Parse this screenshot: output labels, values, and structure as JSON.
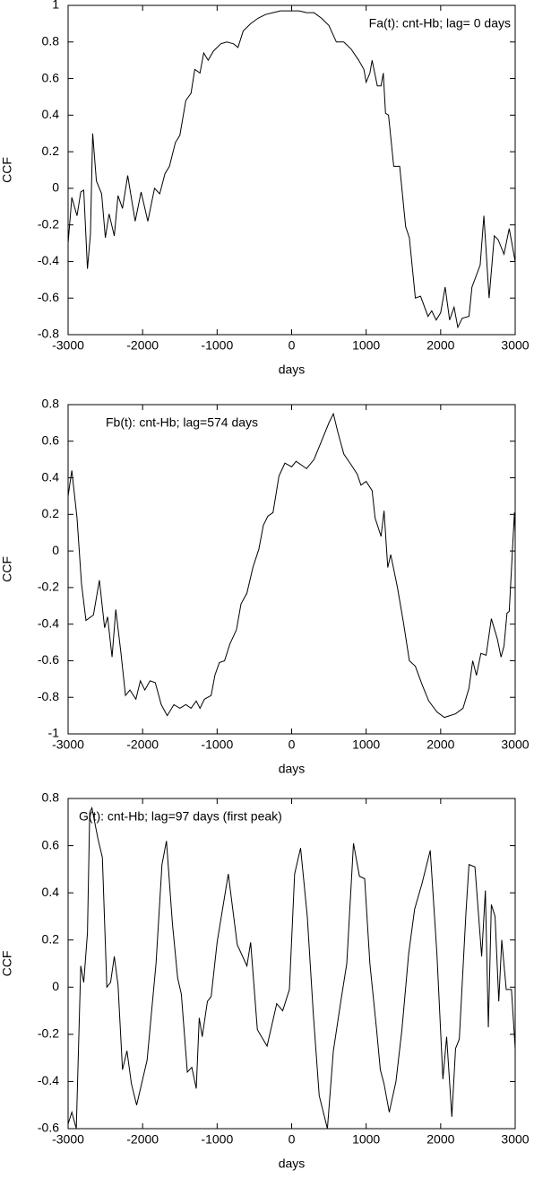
{
  "chart_data": [
    {
      "type": "line",
      "annotation": "Fa(t): cnt-Hb; lag= 0 days",
      "xlabel": "days",
      "ylabel": "CCF",
      "color": "#000000",
      "xlim": [
        -3000,
        3000
      ],
      "xticks": [
        -3000,
        -2000,
        -1000,
        0,
        1000,
        2000,
        3000
      ],
      "ylim": [
        -0.8,
        1
      ],
      "yticks": [
        -0.8,
        -0.6,
        -0.4,
        -0.2,
        0,
        0.2,
        0.4,
        0.6,
        0.8,
        1
      ],
      "x": [
        -3000,
        -2950,
        -2880,
        -2830,
        -2790,
        -2740,
        -2700,
        -2670,
        -2620,
        -2550,
        -2500,
        -2450,
        -2380,
        -2330,
        -2270,
        -2200,
        -2100,
        -2020,
        -1930,
        -1840,
        -1770,
        -1700,
        -1640,
        -1560,
        -1500,
        -1420,
        -1350,
        -1300,
        -1230,
        -1180,
        -1120,
        -1050,
        -950,
        -870,
        -780,
        -720,
        -650,
        -550,
        -450,
        -350,
        -250,
        -150,
        0,
        100,
        200,
        300,
        400,
        500,
        600,
        700,
        800,
        900,
        970,
        1000,
        1050,
        1080,
        1150,
        1200,
        1230,
        1260,
        1300,
        1370,
        1450,
        1530,
        1580,
        1660,
        1730,
        1830,
        1880,
        1940,
        2000,
        2060,
        2120,
        2180,
        2230,
        2290,
        2380,
        2420,
        2530,
        2580,
        2650,
        2720,
        2770,
        2850,
        2920,
        3000
      ],
      "values": [
        -0.3,
        -0.05,
        -0.15,
        -0.02,
        -0.01,
        -0.44,
        -0.25,
        0.3,
        0.04,
        -0.03,
        -0.27,
        -0.14,
        -0.26,
        -0.04,
        -0.11,
        0.07,
        -0.18,
        -0.02,
        -0.18,
        0,
        -0.03,
        0.08,
        0.12,
        0.25,
        0.29,
        0.48,
        0.52,
        0.65,
        0.63,
        0.74,
        0.7,
        0.75,
        0.79,
        0.8,
        0.79,
        0.77,
        0.86,
        0.9,
        0.93,
        0.95,
        0.96,
        0.97,
        0.97,
        0.97,
        0.96,
        0.96,
        0.93,
        0.89,
        0.8,
        0.8,
        0.76,
        0.7,
        0.65,
        0.58,
        0.63,
        0.7,
        0.56,
        0.56,
        0.63,
        0.41,
        0.4,
        0.12,
        0.12,
        -0.21,
        -0.27,
        -0.6,
        -0.59,
        -0.7,
        -0.67,
        -0.72,
        -0.68,
        -0.54,
        -0.72,
        -0.65,
        -0.76,
        -0.71,
        -0.7,
        -0.54,
        -0.42,
        -0.15,
        -0.6,
        -0.26,
        -0.28,
        -0.36,
        -0.22,
        -0.4
      ]
    },
    {
      "type": "line",
      "annotation": "Fb(t): cnt-Hb; lag=574 days",
      "xlabel": "days",
      "ylabel": "CCF",
      "color": "#000000",
      "xlim": [
        -3000,
        3000
      ],
      "xticks": [
        -3000,
        -2000,
        -1000,
        0,
        1000,
        2000,
        3000
      ],
      "ylim": [
        -1,
        0.8
      ],
      "yticks": [
        -1,
        -0.8,
        -0.6,
        -0.4,
        -0.2,
        0,
        0.2,
        0.4,
        0.6,
        0.8
      ],
      "x": [
        -3000,
        -2950,
        -2880,
        -2820,
        -2760,
        -2660,
        -2580,
        -2510,
        -2470,
        -2410,
        -2360,
        -2290,
        -2230,
        -2170,
        -2090,
        -2030,
        -1970,
        -1900,
        -1830,
        -1750,
        -1670,
        -1580,
        -1500,
        -1420,
        -1350,
        -1280,
        -1230,
        -1170,
        -1080,
        -1030,
        -970,
        -900,
        -830,
        -740,
        -680,
        -600,
        -520,
        -440,
        -380,
        -320,
        -250,
        -170,
        -90,
        0,
        60,
        200,
        300,
        400,
        500,
        560,
        620,
        700,
        800,
        880,
        930,
        1000,
        1080,
        1120,
        1200,
        1240,
        1290,
        1330,
        1420,
        1500,
        1580,
        1660,
        1750,
        1840,
        1950,
        2050,
        2200,
        2300,
        2380,
        2430,
        2480,
        2540,
        2610,
        2680,
        2760,
        2810,
        2850,
        2890,
        2920,
        2950,
        2990,
        3000
      ],
      "values": [
        0.3,
        0.44,
        0.18,
        -0.18,
        -0.38,
        -0.35,
        -0.16,
        -0.42,
        -0.36,
        -0.58,
        -0.32,
        -0.56,
        -0.79,
        -0.76,
        -0.81,
        -0.71,
        -0.76,
        -0.71,
        -0.72,
        -0.84,
        -0.9,
        -0.84,
        -0.86,
        -0.84,
        -0.86,
        -0.82,
        -0.86,
        -0.81,
        -0.79,
        -0.68,
        -0.61,
        -0.6,
        -0.51,
        -0.43,
        -0.29,
        -0.23,
        -0.09,
        0.01,
        0.14,
        0.19,
        0.21,
        0.41,
        0.48,
        0.46,
        0.49,
        0.45,
        0.5,
        0.6,
        0.7,
        0.75,
        0.65,
        0.53,
        0.47,
        0.42,
        0.36,
        0.38,
        0.33,
        0.18,
        0.08,
        0.22,
        -0.09,
        -0.02,
        -0.2,
        -0.39,
        -0.6,
        -0.63,
        -0.73,
        -0.82,
        -0.88,
        -0.91,
        -0.89,
        -0.86,
        -0.75,
        -0.6,
        -0.68,
        -0.56,
        -0.57,
        -0.37,
        -0.48,
        -0.58,
        -0.52,
        -0.34,
        -0.33,
        -0.1,
        0.21,
        0.1
      ]
    },
    {
      "type": "line",
      "annotation": "G(t): cnt-Hb; lag=97 days (first peak)",
      "xlabel": "days",
      "ylabel": "CCF",
      "color": "#000000",
      "xlim": [
        -3000,
        3000
      ],
      "xticks": [
        -3000,
        -2000,
        -1000,
        0,
        1000,
        2000,
        3000
      ],
      "ylim": [
        -0.6,
        0.8
      ],
      "yticks": [
        -0.6,
        -0.4,
        -0.2,
        0,
        0.2,
        0.4,
        0.6,
        0.8
      ],
      "x": [
        -3000,
        -2950,
        -2890,
        -2830,
        -2790,
        -2740,
        -2710,
        -2680,
        -2600,
        -2540,
        -2480,
        -2430,
        -2380,
        -2330,
        -2270,
        -2210,
        -2150,
        -2080,
        -1940,
        -1820,
        -1740,
        -1680,
        -1600,
        -1530,
        -1480,
        -1400,
        -1340,
        -1280,
        -1240,
        -1200,
        -1130,
        -1080,
        -1000,
        -850,
        -730,
        -600,
        -550,
        -460,
        -330,
        -200,
        -120,
        -30,
        40,
        120,
        210,
        290,
        370,
        480,
        560,
        660,
        740,
        830,
        910,
        980,
        1050,
        1140,
        1190,
        1240,
        1310,
        1400,
        1480,
        1570,
        1650,
        1750,
        1860,
        1950,
        2030,
        2080,
        2150,
        2200,
        2250,
        2340,
        2380,
        2460,
        2550,
        2600,
        2640,
        2680,
        2730,
        2780,
        2820,
        2880,
        2950,
        3000
      ],
      "values": [
        -0.58,
        -0.53,
        -0.6,
        0.09,
        0.02,
        0.23,
        0.74,
        0.76,
        0.63,
        0.55,
        0,
        0.02,
        0.13,
        0.01,
        -0.35,
        -0.27,
        -0.41,
        -0.5,
        -0.31,
        0.1,
        0.52,
        0.62,
        0.27,
        0.04,
        -0.03,
        -0.36,
        -0.34,
        -0.43,
        -0.13,
        -0.21,
        -0.06,
        -0.04,
        0.19,
        0.48,
        0.18,
        0.09,
        0.19,
        -0.18,
        -0.25,
        -0.07,
        -0.1,
        -0.01,
        0.48,
        0.59,
        0.3,
        -0.11,
        -0.46,
        -0.6,
        -0.27,
        -0.06,
        0.1,
        0.61,
        0.47,
        0.46,
        0.1,
        -0.18,
        -0.35,
        -0.41,
        -0.53,
        -0.4,
        -0.18,
        0.14,
        0.33,
        0.44,
        0.58,
        0.14,
        -0.39,
        -0.21,
        -0.55,
        -0.26,
        -0.22,
        0.32,
        0.52,
        0.51,
        0.13,
        0.41,
        -0.17,
        0.35,
        0.3,
        -0.06,
        0.2,
        -0.01,
        -0.01,
        -0.26
      ]
    }
  ]
}
